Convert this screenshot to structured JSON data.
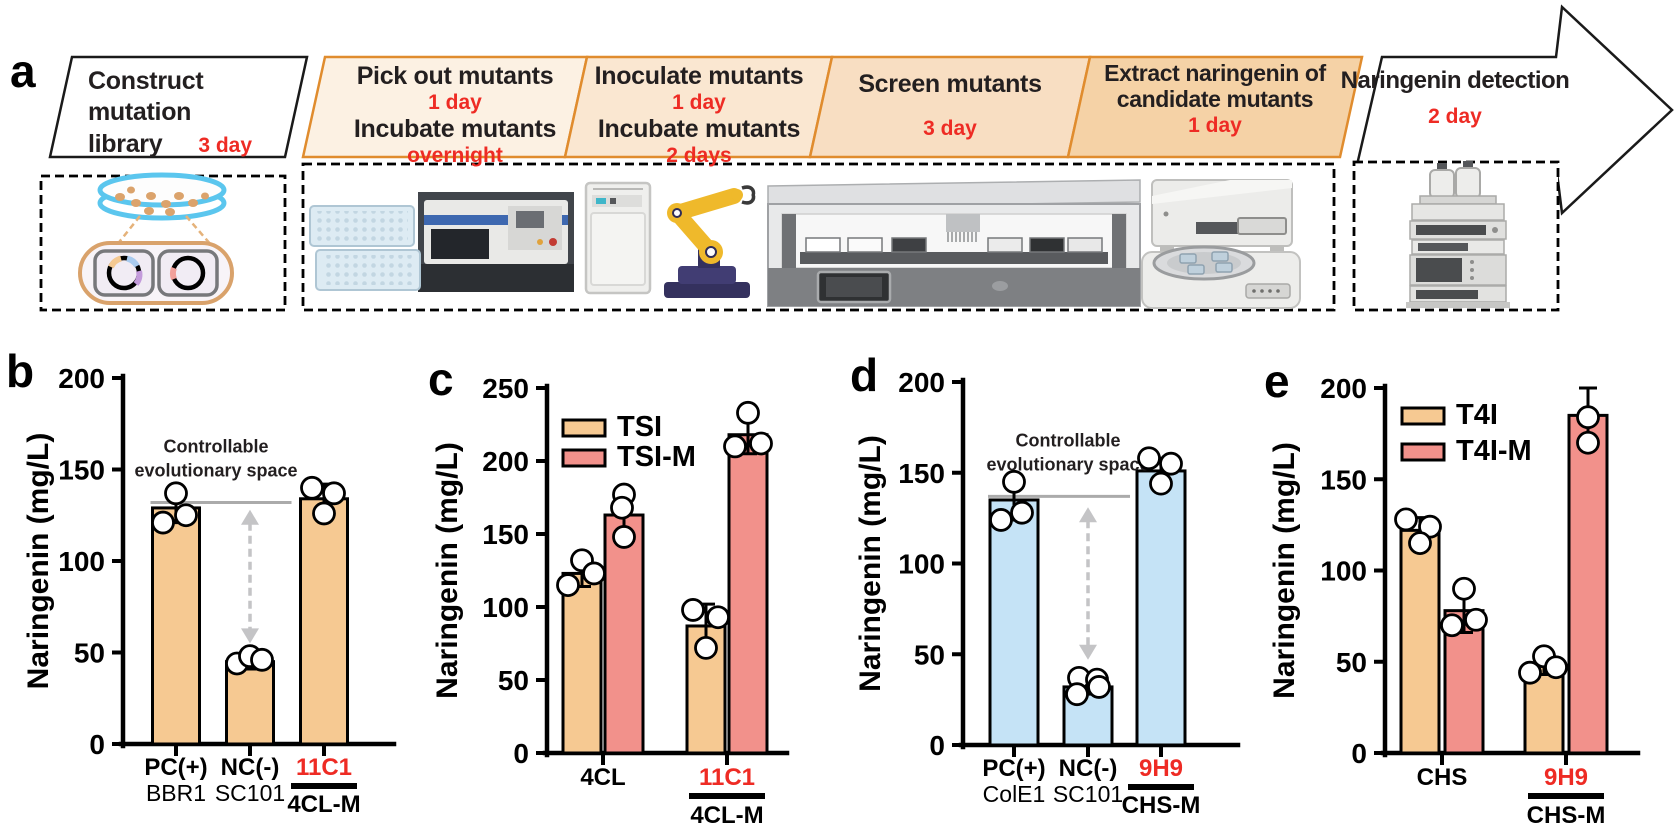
{
  "figure": {
    "panel_labels": [
      "a",
      "b",
      "c",
      "d",
      "e"
    ]
  },
  "colors": {
    "red": "#EE2B24",
    "dark_text": "#231F20",
    "tan_bar": "#F6C992",
    "salmon_bar": "#F2918B",
    "blue_bar": "#C5E3F6",
    "orange_border": "#E08C2E",
    "annotation_gray": "#ABABAB",
    "arrow_gray": "#C4C4C6",
    "step_fills": [
      "#FFFFFF",
      "#FCF1E3",
      "#FAE7D1",
      "#F8DEC2",
      "#F5D2A6",
      "#FFFFFF"
    ]
  },
  "workflow": {
    "steps": [
      {
        "name": "construct-mutation-library",
        "title_line1": "Construct mutation",
        "title_line2": "library",
        "time": "3 day"
      },
      {
        "name": "pick-and-incubate-mutants",
        "lines": [
          {
            "text": "Pick out mutants",
            "red": false
          },
          {
            "text": "1 day",
            "red": true
          },
          {
            "text": "Incubate mutants",
            "red": false
          },
          {
            "text": "overnight",
            "red": true
          }
        ]
      },
      {
        "name": "inoculate-and-incubate-mutants",
        "lines": [
          {
            "text": "Inoculate mutants",
            "red": false
          },
          {
            "text": "1 day",
            "red": true
          },
          {
            "text": "Incubate mutants",
            "red": false
          },
          {
            "text": "2 days",
            "red": true
          }
        ]
      },
      {
        "name": "screen-mutants",
        "lines": [
          {
            "text": "Screen mutants",
            "red": false
          },
          {
            "text": "3 day",
            "red": true
          }
        ]
      },
      {
        "name": "extract-naringenin",
        "lines": [
          {
            "text": "Extract naringenin of",
            "red": false
          },
          {
            "text": "candidate mutants",
            "red": false
          },
          {
            "text": "1 day",
            "red": true
          }
        ]
      },
      {
        "name": "naringenin-detection",
        "lines": [
          {
            "text": "Naringenin detection",
            "red": false
          },
          {
            "text": "2 day",
            "red": true
          }
        ]
      }
    ]
  },
  "chart_data": [
    {
      "panel": "b",
      "type": "bar",
      "ylabel": "Naringenin (mg/L)",
      "ylim": [
        0,
        200
      ],
      "ytick_step": 50,
      "grid": false,
      "bar_color": "#F6C992",
      "categories": [
        {
          "label": "PC(+)",
          "sublabel": "BBR1",
          "red": false
        },
        {
          "label": "NC(-)",
          "sublabel": "SC101",
          "red": false
        },
        {
          "label": "11C1",
          "red": true,
          "underline_label": "4CL-M"
        }
      ],
      "values": [
        129,
        45,
        134
      ],
      "errors": [
        8,
        4,
        8
      ],
      "points": [
        [
          {
            "dx": 0,
            "v": 137
          },
          {
            "dx": 10,
            "v": 125
          },
          {
            "dx": -13,
            "v": 121
          }
        ],
        [
          {
            "dx": -13,
            "v": 44
          },
          {
            "dx": 0,
            "v": 48
          },
          {
            "dx": 12,
            "v": 46
          }
        ],
        [
          {
            "dx": -12,
            "v": 140
          },
          {
            "dx": 10,
            "v": 137
          },
          {
            "dx": 0,
            "v": 126
          }
        ]
      ],
      "annotation": {
        "line1": "Controllable",
        "line2": "evolutionary space",
        "ref_y": 132,
        "arrow_x_index": 1,
        "arrow_top": 128,
        "arrow_bottom": 55
      }
    },
    {
      "panel": "c",
      "type": "grouped_bar",
      "ylabel": "Naringenin (mg/L)",
      "ylim": [
        0,
        250
      ],
      "ytick_step": 50,
      "grid": false,
      "legend_position": "upper-left",
      "series": [
        {
          "name": "TSI",
          "color": "#F6C992"
        },
        {
          "name": "TSI-M",
          "color": "#F2918B"
        }
      ],
      "categories": [
        {
          "label": "4CL",
          "red": false
        },
        {
          "label": "11C1",
          "red": true,
          "underline_label": "4CL-M"
        }
      ],
      "values": [
        [
          123,
          163
        ],
        [
          87,
          218
        ]
      ],
      "errors": [
        [
          9,
          15
        ],
        [
          15,
          13
        ]
      ],
      "points": [
        [
          [
            {
              "dx": 0,
              "v": 132
            },
            {
              "dx": -14,
              "v": 115
            },
            {
              "dx": 12,
              "v": 123
            }
          ],
          [
            {
              "dx": 0,
              "v": 177
            },
            {
              "dx": -2,
              "v": 168
            },
            {
              "dx": 0,
              "v": 148
            }
          ]
        ],
        [
          [
            {
              "dx": -13,
              "v": 98
            },
            {
              "dx": 12,
              "v": 93
            },
            {
              "dx": 0,
              "v": 72
            }
          ],
          [
            {
              "dx": 0,
              "v": 233
            },
            {
              "dx": -13,
              "v": 210
            },
            {
              "dx": 13,
              "v": 212
            }
          ]
        ]
      ]
    },
    {
      "panel": "d",
      "type": "bar",
      "ylabel": "Naringenin (mg/L)",
      "ylim": [
        0,
        200
      ],
      "ytick_step": 50,
      "grid": false,
      "bar_color": "#C5E3F6",
      "categories": [
        {
          "label": "PC(+)",
          "sublabel": "ColE1",
          "red": false
        },
        {
          "label": "NC(-)",
          "sublabel": "SC101",
          "red": false
        },
        {
          "label": "9H9",
          "red": true,
          "underline_label": "CHS-M"
        }
      ],
      "values": [
        135,
        32,
        151
      ],
      "errors": [
        11,
        4,
        7
      ],
      "points": [
        [
          {
            "dx": 0,
            "v": 145
          },
          {
            "dx": -13,
            "v": 124
          },
          {
            "dx": 8,
            "v": 128
          }
        ],
        [
          {
            "dx": -9,
            "v": 37
          },
          {
            "dx": -11,
            "v": 28
          },
          {
            "dx": 9,
            "v": 36
          },
          {
            "dx": 11,
            "v": 32
          }
        ],
        [
          {
            "dx": -12,
            "v": 158
          },
          {
            "dx": 10,
            "v": 155
          },
          {
            "dx": 0,
            "v": 144
          }
        ]
      ],
      "annotation": {
        "line1": "Controllable",
        "line2": "evolutionary space",
        "ref_y": 137,
        "arrow_x_index": 1,
        "arrow_top": 131,
        "arrow_bottom": 47
      }
    },
    {
      "panel": "e",
      "type": "grouped_bar",
      "ylabel": "Naringenin (mg/L)",
      "ylim": [
        0,
        200
      ],
      "ytick_step": 50,
      "grid": false,
      "legend_position": "upper-left",
      "series": [
        {
          "name": "T4I",
          "color": "#F6C992"
        },
        {
          "name": "T4I-M",
          "color": "#F2918B"
        }
      ],
      "categories": [
        {
          "label": "CHS",
          "red": false
        },
        {
          "label": "9H9",
          "red": true,
          "underline_label": "CHS-M"
        }
      ],
      "values": [
        [
          122,
          78
        ],
        [
          48,
          185
        ]
      ],
      "errors": [
        [
          7,
          12
        ],
        [
          5,
          15
        ]
      ],
      "points": [
        [
          [
            {
              "dx": -14,
              "v": 128
            },
            {
              "dx": 10,
              "v": 124
            },
            {
              "dx": 0,
              "v": 115
            }
          ],
          [
            {
              "dx": 0,
              "v": 90
            },
            {
              "dx": -12,
              "v": 70
            },
            {
              "dx": 12,
              "v": 73
            }
          ]
        ],
        [
          [
            {
              "dx": 0,
              "v": 53
            },
            {
              "dx": -14,
              "v": 44
            },
            {
              "dx": 12,
              "v": 47
            }
          ],
          [
            {
              "dx": 0,
              "v": 184
            },
            {
              "dx": 0,
              "v": 170
            }
          ]
        ]
      ]
    }
  ]
}
